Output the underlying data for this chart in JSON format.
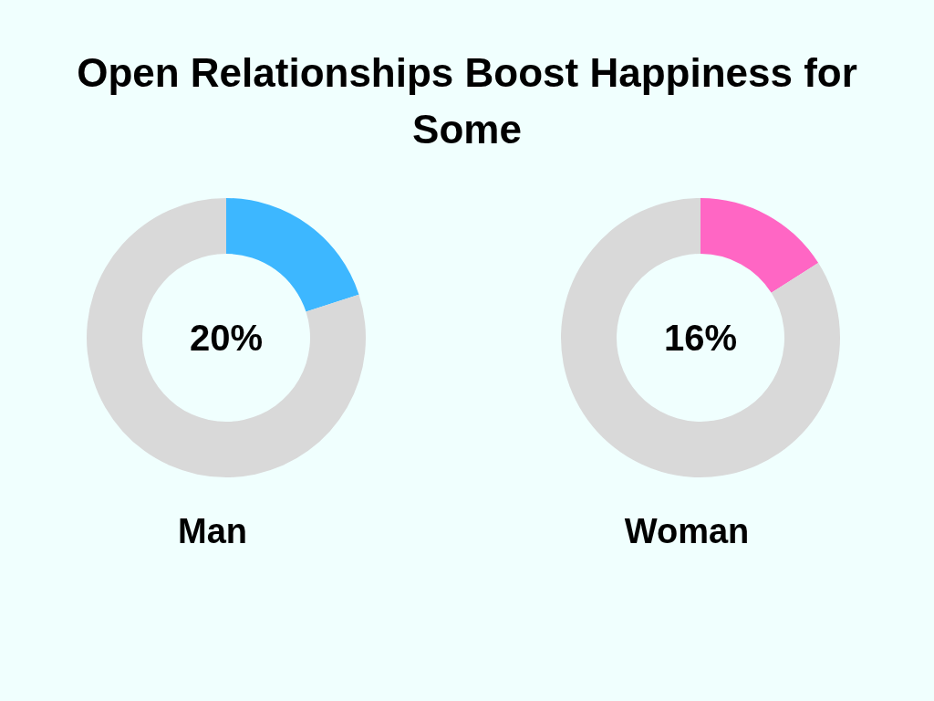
{
  "chart_data": [
    {
      "type": "donut",
      "title": "Open Relationships Boost Happiness for Some",
      "categories": [
        null,
        null
      ],
      "values": [
        20,
        80
      ],
      "colors": [
        "#3db7ff",
        "#d9d9d9"
      ],
      "value_labels": [
        "20%",
        null
      ],
      "xlabel": "Man"
    },
    {
      "type": "donut",
      "categories": [
        null,
        null
      ],
      "values": [
        16,
        84
      ],
      "colors": [
        "#ff66c4",
        "#d9d9d9"
      ],
      "value_labels": [
        "16%",
        null
      ],
      "xlabel": "Woman"
    }
  ]
}
